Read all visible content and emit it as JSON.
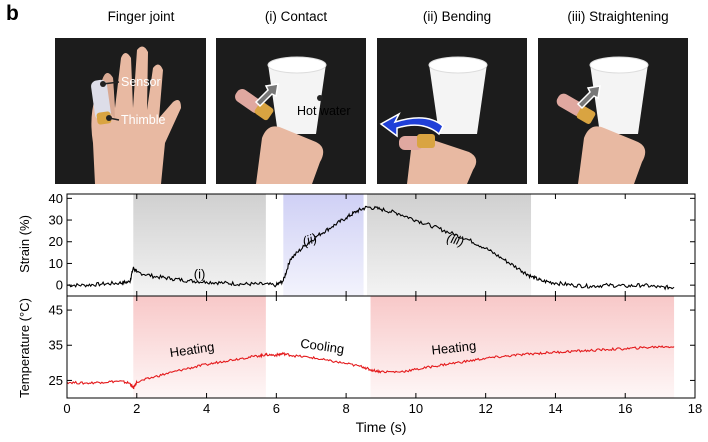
{
  "panel_letter": "b",
  "photos": [
    {
      "label": "Finger joint",
      "annotations": [
        "Sensor",
        "Thimble"
      ]
    },
    {
      "label": "(i) Contact",
      "annotations": [
        "Hot water"
      ]
    },
    {
      "label": "(ii) Bending",
      "annotations": []
    },
    {
      "label": "(iii) Straightening",
      "annotations": []
    }
  ],
  "colors": {
    "strain_line": "#000000",
    "temperature_line": "#e41a1c",
    "shade_gray": "#d0d0d0",
    "shade_blue": "#cfd0f5",
    "shade_red": "#f8c8c8",
    "arrow_gray": "#777777",
    "arrow_blue": "#1f3fd8",
    "sensor_tape": "#d9a441"
  },
  "chart_data": [
    {
      "type": "line",
      "ylabel": "Strain (%)",
      "ylim": [
        -5,
        42
      ],
      "yticks": [
        0,
        10,
        20,
        30,
        40
      ],
      "xlim": [
        0,
        18
      ],
      "series": [
        {
          "values_x": [
            0,
            0.5,
            1,
            1.5,
            1.8,
            1.9,
            2.0,
            2.5,
            3,
            3.5,
            4,
            4.5,
            5,
            5.5,
            6,
            6.2,
            6.4,
            6.8,
            7.2,
            7.6,
            8.0,
            8.3,
            8.6,
            9,
            9.5,
            10,
            10.5,
            11,
            11.5,
            12,
            12.5,
            13,
            13.3,
            13.6,
            14,
            14.5,
            15,
            15.5,
            16,
            16.5,
            17,
            17.4
          ],
          "values": [
            0,
            0,
            0.5,
            1,
            1.5,
            8,
            6,
            4,
            3,
            2,
            1.5,
            1,
            0.5,
            0.5,
            0,
            2,
            12,
            18,
            23,
            27,
            31,
            34,
            36,
            35,
            33,
            30,
            27,
            24,
            21,
            17,
            12,
            7,
            4,
            2,
            1,
            0,
            -0.5,
            0,
            -0.5,
            0,
            -1,
            -1
          ]
        }
      ],
      "shaded_regions": [
        {
          "x": [
            1.9,
            5.7
          ],
          "color": "gray",
          "label": "(i)",
          "label_x": 3.8,
          "label_y": 3
        },
        {
          "x": [
            6.2,
            8.5
          ],
          "color": "blue",
          "label": "(ii)",
          "label_x": 7.0,
          "label_y": 19
        },
        {
          "x": [
            8.6,
            13.3
          ],
          "color": "gray",
          "label": "(iii)",
          "label_x": 11.1,
          "label_y": 19
        }
      ]
    },
    {
      "type": "line",
      "ylabel": "Temperature (°C)",
      "ylim": [
        20,
        49
      ],
      "yticks": [
        25,
        35,
        45
      ],
      "xlim": [
        0,
        18
      ],
      "xticks": [
        0,
        2,
        4,
        6,
        8,
        10,
        12,
        14,
        16,
        18
      ],
      "xlabel": "Time (s)",
      "series": [
        {
          "values_x": [
            0,
            0.5,
            1,
            1.5,
            1.8,
            1.9,
            2.0,
            2.5,
            3,
            3.5,
            4,
            4.5,
            5,
            5.5,
            5.7,
            6.0,
            6.2,
            6.5,
            7,
            7.5,
            8,
            8.5,
            8.7,
            9,
            9.5,
            10,
            10.5,
            11,
            11.5,
            12,
            12.5,
            13,
            13.5,
            14,
            14.5,
            15,
            15.5,
            16,
            16.5,
            17,
            17.4
          ],
          "values": [
            24.5,
            24.2,
            24.5,
            24.8,
            24.2,
            22.8,
            24.5,
            26,
            27.3,
            28.5,
            29.5,
            30.5,
            31.3,
            32,
            32.3,
            32.2,
            32.6,
            32,
            31.5,
            30.6,
            29.8,
            28.8,
            28.0,
            27.5,
            27.4,
            28.1,
            29.0,
            29.8,
            30.5,
            31.3,
            31.8,
            32.3,
            32.7,
            33.0,
            33.3,
            33.5,
            33.8,
            34.0,
            34.3,
            34.6,
            34.6
          ]
        }
      ],
      "shaded_regions": [
        {
          "x": [
            1.9,
            5.7
          ],
          "color": "red",
          "label": "Heating",
          "label_x": 3.6,
          "label_y": 32.5
        },
        {
          "x": [
            5.7,
            8.7
          ],
          "color": "none",
          "label": "Cooling",
          "label_x": 7.3,
          "label_y": 33.5
        },
        {
          "x": [
            8.7,
            17.4
          ],
          "color": "red",
          "label": "Heating",
          "label_x": 11.1,
          "label_y": 33
        }
      ]
    }
  ]
}
